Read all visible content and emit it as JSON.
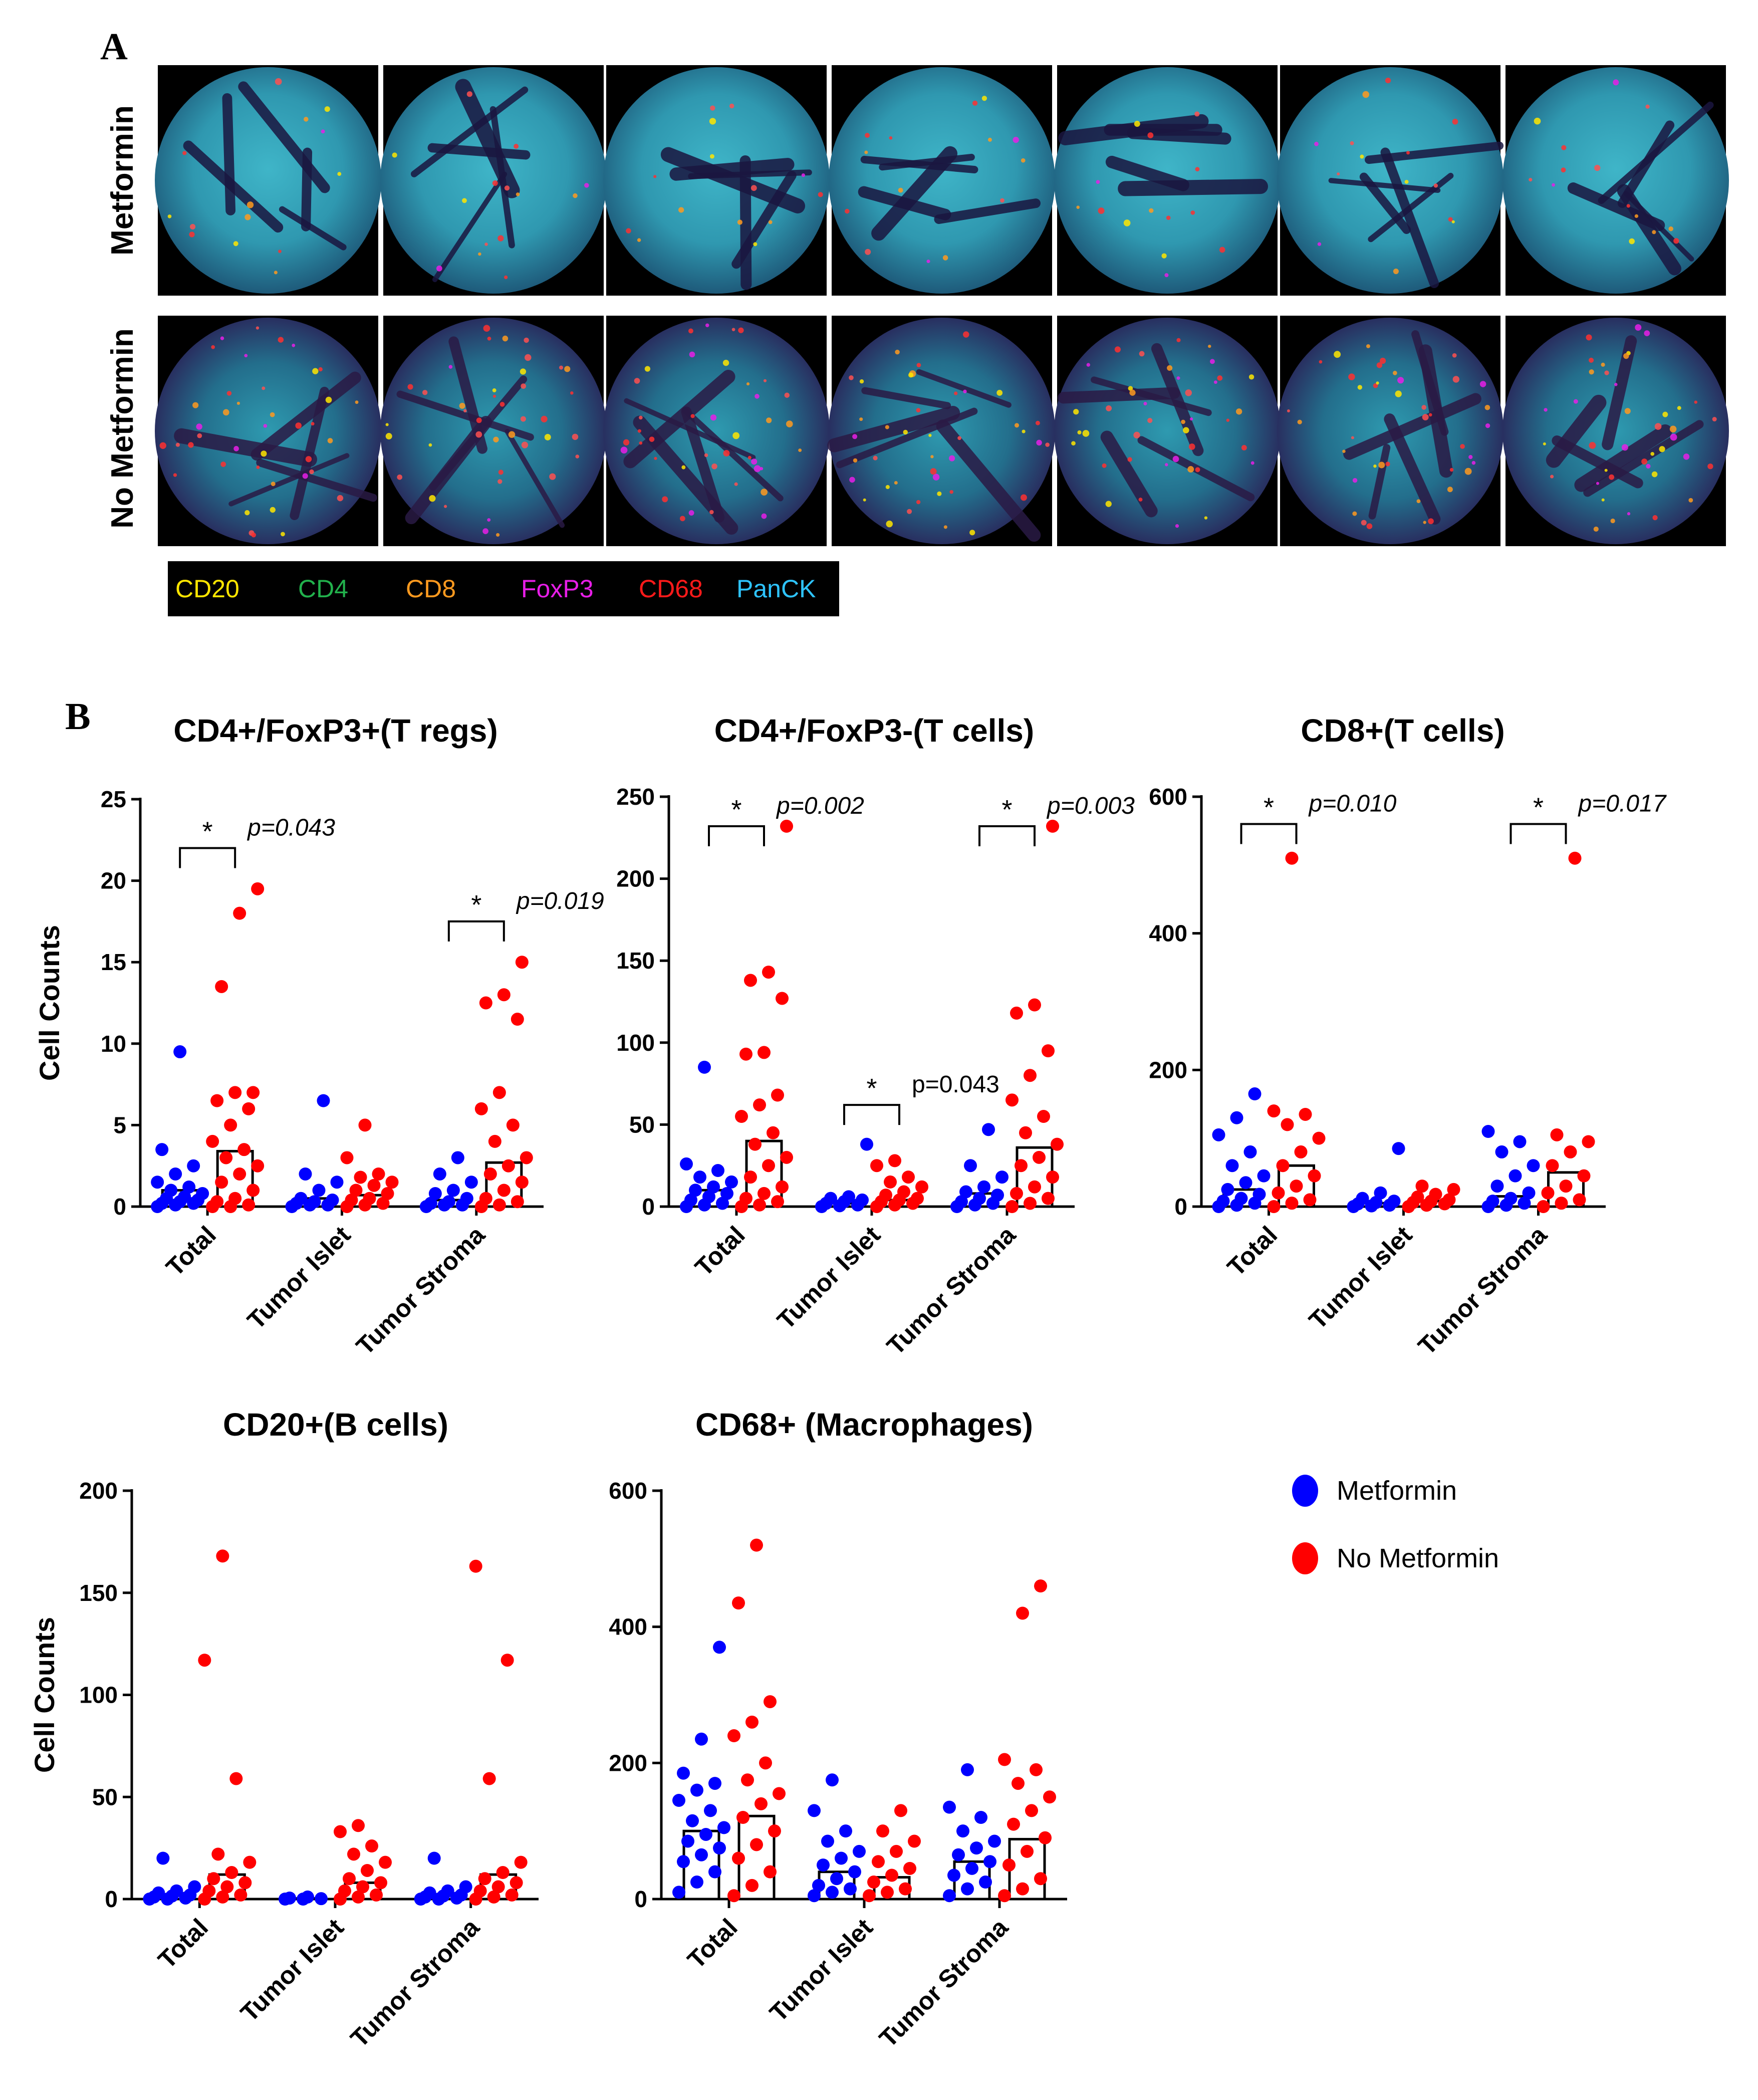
{
  "panel_a": {
    "letter": "A",
    "rows": [
      {
        "label": "Metformin",
        "cores": 7
      },
      {
        "label": "No Metformin",
        "cores": 7
      }
    ],
    "markers": [
      {
        "name": "CD20",
        "color": "#ffe600"
      },
      {
        "name": "CD4",
        "color": "#22b14c"
      },
      {
        "name": "CD8",
        "color": "#ff9a1f"
      },
      {
        "name": "FoxP3",
        "color": "#e81ee8"
      },
      {
        "name": "CD68",
        "color": "#ff1a1a"
      },
      {
        "name": "PanCK",
        "color": "#2ec4ff"
      }
    ]
  },
  "panel_b": {
    "letter": "B"
  },
  "legend": {
    "items": [
      {
        "label": "Metformin",
        "color": "#0000ff"
      },
      {
        "label": "No Metformin",
        "color": "#ff0000"
      }
    ]
  },
  "chart_data": [
    {
      "type": "bar",
      "title": "CD4+/FoxP3+(T regs)",
      "ylabel": "Cell Counts",
      "ylim": [
        0,
        25
      ],
      "yticks": [
        0,
        5,
        10,
        15,
        20,
        25
      ],
      "categories": [
        "Total",
        "Tumor Islet",
        "Tumor Stroma"
      ],
      "series": [
        {
          "name": "Metformin",
          "color": "#0000ff",
          "values": [
            1.0,
            0.5,
            0.4
          ],
          "points": [
            [
              0,
              0.1,
              0.2,
              0.2,
              0.3,
              0.4,
              0.5,
              0.6,
              0.8,
              1,
              1.2,
              1.5,
              2,
              2.5,
              3.5,
              9.5
            ],
            [
              0,
              0.1,
              0.1,
              0.2,
              0.3,
              0.4,
              0.5,
              1,
              1.5,
              2,
              6.5
            ],
            [
              0,
              0.1,
              0.1,
              0.2,
              0.3,
              0.5,
              0.8,
              1,
              1.5,
              2,
              3
            ]
          ]
        },
        {
          "name": "No Metformin",
          "color": "#ff0000",
          "values": [
            3.4,
            0.7,
            2.7
          ],
          "points": [
            [
              0,
              0,
              0.1,
              0.3,
              0.5,
              1,
              1.5,
              2,
              2.5,
              3,
              3.5,
              4,
              5,
              6,
              6.5,
              7,
              7,
              13.5,
              18,
              19.5
            ],
            [
              0,
              0.1,
              0.2,
              0.4,
              0.5,
              0.8,
              1,
              1.3,
              1.5,
              1.8,
              2,
              3,
              5
            ],
            [
              0,
              0.1,
              0.3,
              0.5,
              1,
              1.5,
              2,
              2.5,
              3,
              4,
              5,
              6,
              7,
              11.5,
              12.5,
              13,
              15
            ]
          ]
        }
      ],
      "comparisons": [
        {
          "category": "Total",
          "label": "*",
          "p": "p=0.043",
          "y": 22,
          "italic": true
        },
        {
          "category": "Tumor Stroma",
          "label": "*",
          "p": "p=0.019",
          "y": 17.5,
          "italic": true
        }
      ]
    },
    {
      "type": "bar",
      "title": "CD4+/FoxP3-(T cells)",
      "ylabel": "",
      "ylim": [
        0,
        250
      ],
      "yticks": [
        0,
        50,
        100,
        150,
        200,
        250
      ],
      "categories": [
        "Total",
        "Tumor Islet",
        "Tumor Stroma"
      ],
      "series": [
        {
          "name": "Metformin",
          "color": "#0000ff",
          "values": [
            10,
            2,
            8
          ],
          "points": [
            [
              0,
              1,
              2,
              4,
              6,
              8,
              10,
              12,
              15,
              18,
              22,
              26,
              85
            ],
            [
              0,
              0.5,
              1,
              2,
              3,
              4,
              5,
              6,
              38
            ],
            [
              0,
              1,
              2,
              3,
              5,
              7,
              9,
              12,
              18,
              25,
              47
            ]
          ]
        },
        {
          "name": "No Metformin",
          "color": "#ff0000",
          "values": [
            40,
            4,
            36
          ],
          "points": [
            [
              0,
              1,
              3,
              5,
              8,
              12,
              18,
              25,
              30,
              38,
              45,
              55,
              62,
              68,
              93,
              94,
              127,
              138,
              143,
              232
            ],
            [
              0,
              1,
              2,
              3,
              4,
              5,
              7,
              9,
              12,
              15,
              18,
              25,
              28
            ],
            [
              0,
              2,
              5,
              8,
              12,
              18,
              25,
              30,
              38,
              45,
              55,
              65,
              80,
              95,
              118,
              123,
              232
            ]
          ]
        }
      ],
      "comparisons": [
        {
          "category": "Total",
          "label": "*",
          "p": "p=0.002",
          "y": 232,
          "italic": true
        },
        {
          "category": "Tumor Islet",
          "label": "*",
          "p": "p=0.043",
          "y": 62,
          "italic": false
        },
        {
          "category": "Tumor Stroma",
          "label": "*",
          "p": "p=0.003",
          "y": 232,
          "italic": true
        }
      ]
    },
    {
      "type": "bar",
      "title": "CD8+(T cells)",
      "ylabel": "",
      "ylim": [
        0,
        600
      ],
      "yticks": [
        0,
        200,
        400,
        600
      ],
      "categories": [
        "Total",
        "Tumor Islet",
        "Tumor Stroma"
      ],
      "series": [
        {
          "name": "Metformin",
          "color": "#0000ff",
          "values": [
            25,
            5,
            15
          ],
          "points": [
            [
              0,
              2,
              5,
              8,
              12,
              18,
              25,
              35,
              45,
              60,
              80,
              105,
              130,
              165
            ],
            [
              0,
              1,
              2,
              4,
              6,
              8,
              12,
              20,
              85
            ],
            [
              0,
              2,
              5,
              8,
              12,
              20,
              30,
              45,
              60,
              80,
              95,
              110
            ]
          ]
        },
        {
          "name": "No Metformin",
          "color": "#ff0000",
          "values": [
            60,
            8,
            50
          ],
          "points": [
            [
              0,
              5,
              10,
              20,
              30,
              45,
              60,
              80,
              100,
              120,
              135,
              140,
              510
            ],
            [
              0,
              2,
              4,
              6,
              8,
              10,
              14,
              18,
              25,
              30
            ],
            [
              0,
              5,
              10,
              20,
              30,
              45,
              60,
              80,
              95,
              105,
              510
            ]
          ]
        }
      ],
      "comparisons": [
        {
          "category": "Total",
          "label": "*",
          "p": "p=0.010",
          "y": 560,
          "italic": true
        },
        {
          "category": "Tumor Stroma",
          "label": "*",
          "p": "p=0.017",
          "y": 560,
          "italic": true
        }
      ]
    },
    {
      "type": "bar",
      "title": "CD20+(B cells)",
      "ylabel": "Cell Counts",
      "ylim": [
        0,
        200
      ],
      "yticks": [
        0,
        50,
        100,
        150,
        200
      ],
      "categories": [
        "Total",
        "Tumor Islet",
        "Tumor Stroma"
      ],
      "series": [
        {
          "name": "Metformin",
          "color": "#0000ff",
          "values": [
            2,
            0.3,
            2
          ],
          "points": [
            [
              0,
              0,
              0.5,
              1,
              1.5,
              2,
              3,
              4,
              6,
              20
            ],
            [
              0,
              0,
              0.2,
              0.5,
              1
            ],
            [
              0,
              0,
              0.5,
              1,
              1.5,
              2,
              3,
              4,
              6,
              20
            ]
          ]
        },
        {
          "name": "No Metformin",
          "color": "#ff0000",
          "values": [
            12,
            8,
            12
          ],
          "points": [
            [
              0,
              1,
              2,
              4,
              6,
              8,
              10,
              13,
              18,
              22,
              59,
              117,
              168
            ],
            [
              0,
              1,
              2,
              4,
              6,
              8,
              10,
              14,
              18,
              22,
              26,
              33,
              36
            ],
            [
              0,
              1,
              2,
              4,
              6,
              8,
              10,
              13,
              18,
              59,
              117,
              163
            ]
          ]
        }
      ],
      "comparisons": []
    },
    {
      "type": "bar",
      "title": "CD68+ (Macrophages)",
      "ylabel": "",
      "ylim": [
        0,
        600
      ],
      "yticks": [
        0,
        200,
        400,
        600
      ],
      "categories": [
        "Total",
        "Tumor Islet",
        "Tumor Stroma"
      ],
      "series": [
        {
          "name": "Metformin",
          "color": "#0000ff",
          "values": [
            100,
            40,
            55
          ],
          "points": [
            [
              10,
              25,
              40,
              55,
              65,
              75,
              85,
              95,
              105,
              115,
              130,
              145,
              160,
              170,
              185,
              235,
              370
            ],
            [
              5,
              10,
              15,
              20,
              30,
              40,
              50,
              60,
              70,
              85,
              100,
              130,
              175
            ],
            [
              5,
              15,
              25,
              35,
              45,
              55,
              65,
              75,
              85,
              100,
              120,
              135,
              190
            ]
          ]
        },
        {
          "name": "No Metformin",
          "color": "#ff0000",
          "values": [
            122,
            32,
            88
          ],
          "points": [
            [
              5,
              20,
              40,
              60,
              80,
              100,
              120,
              140,
              155,
              175,
              200,
              240,
              260,
              290,
              435,
              520
            ],
            [
              5,
              10,
              15,
              25,
              35,
              45,
              55,
              70,
              85,
              100,
              130
            ],
            [
              5,
              15,
              30,
              50,
              70,
              90,
              110,
              130,
              150,
              170,
              190,
              205,
              420,
              460
            ]
          ]
        }
      ],
      "comparisons": []
    }
  ]
}
